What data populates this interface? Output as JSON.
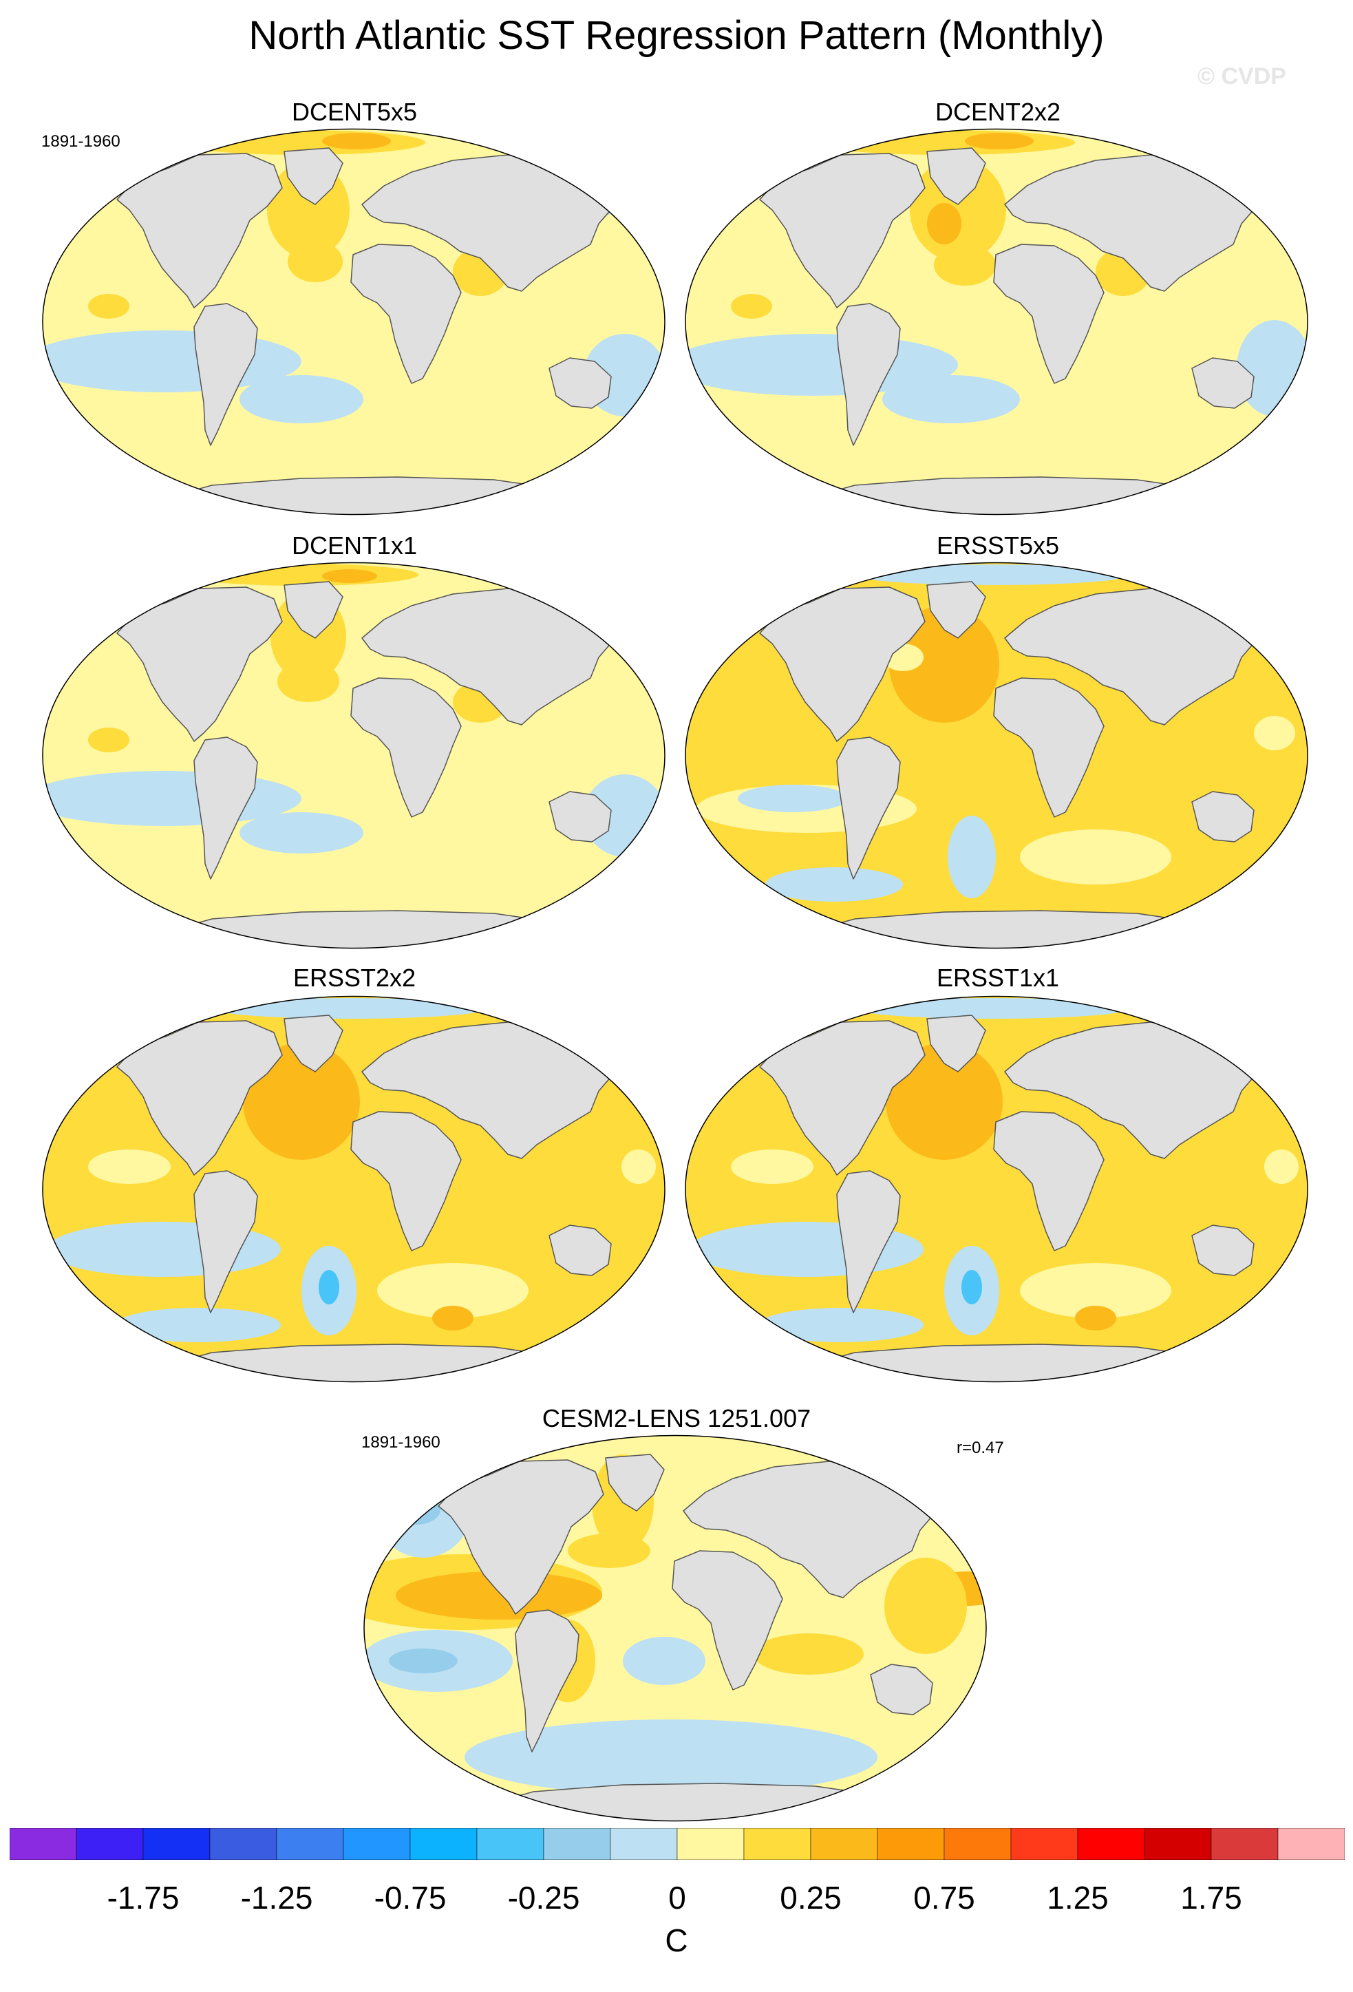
{
  "title": "North Atlantic SST Regression Pattern (Monthly)",
  "watermark": "© CVDP",
  "period_label": "1891-1960",
  "panels": [
    {
      "name": "DCENT5x5",
      "pattern": "dcent5"
    },
    {
      "name": "DCENT2x2",
      "pattern": "dcent2"
    },
    {
      "name": "DCENT1x1",
      "pattern": "dcent1"
    },
    {
      "name": "ERSST5x5",
      "pattern": "ersst5"
    },
    {
      "name": "ERSST2x2",
      "pattern": "ersst2"
    },
    {
      "name": "ERSST1x1",
      "pattern": "ersst1"
    },
    {
      "name": "CESM2-LENS 1251.007",
      "pattern": "cesm",
      "correlation": "r=0.47"
    }
  ],
  "colorbar": {
    "unit": "C",
    "colors": [
      "#8a2be2",
      "#3d20f5",
      "#1530f5",
      "#3a5ce0",
      "#3c7ff0",
      "#2196ff",
      "#0db2ff",
      "#48c4f8",
      "#96cdeb",
      "#bde0f3",
      "#fff8a0",
      "#fddc3c",
      "#fcb91a",
      "#fc9a08",
      "#fd7a0a",
      "#ff3a1a",
      "#ff0000",
      "#d40000",
      "#db3a3a",
      "#ffb2b5"
    ],
    "tick_labels": [
      "-1.75",
      "-1.25",
      "-0.75",
      "-0.25",
      "0",
      "0.25",
      "0.75",
      "1.25",
      "1.75"
    ]
  },
  "colors": {
    "land": "#e0e0e0",
    "coast": "#555555",
    "pale_yellow": "#fff8a0",
    "yellow": "#fddc3c",
    "orange": "#fcb91a",
    "light_blue": "#bde0f3",
    "mid_blue": "#96cdeb",
    "blue": "#48c4f8"
  }
}
